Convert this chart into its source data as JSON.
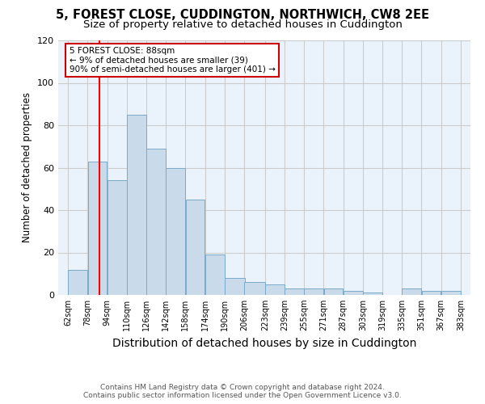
{
  "title": "5, FOREST CLOSE, CUDDINGTON, NORTHWICH, CW8 2EE",
  "subtitle": "Size of property relative to detached houses in Cuddington",
  "xlabel": "Distribution of detached houses by size in Cuddington",
  "ylabel": "Number of detached properties",
  "bar_left_edges": [
    62,
    78,
    94,
    110,
    126,
    142,
    158,
    174,
    190,
    206,
    223,
    239,
    255,
    271,
    287,
    303,
    319,
    335,
    351,
    367
  ],
  "bar_widths": [
    16,
    16,
    16,
    16,
    16,
    16,
    16,
    16,
    17,
    17,
    16,
    16,
    16,
    16,
    16,
    16,
    16,
    16,
    16,
    16
  ],
  "bar_heights": [
    12,
    63,
    54,
    85,
    69,
    60,
    45,
    19,
    8,
    6,
    5,
    3,
    3,
    3,
    2,
    1,
    0,
    3,
    2,
    2
  ],
  "bar_color": "#c9daea",
  "bar_edge_color": "#7aaac8",
  "red_line_x": 88,
  "annotation_text": "5 FOREST CLOSE: 88sqm\n← 9% of detached houses are smaller (39)\n90% of semi-detached houses are larger (401) →",
  "annotation_box_color": "#ffffff",
  "annotation_box_edge": "#cc0000",
  "tick_labels": [
    "62sqm",
    "78sqm",
    "94sqm",
    "110sqm",
    "126sqm",
    "142sqm",
    "158sqm",
    "174sqm",
    "190sqm",
    "206sqm",
    "223sqm",
    "239sqm",
    "255sqm",
    "271sqm",
    "287sqm",
    "303sqm",
    "319sqm",
    "335sqm",
    "351sqm",
    "367sqm",
    "383sqm"
  ],
  "tick_positions": [
    62,
    78,
    94,
    110,
    126,
    142,
    158,
    174,
    190,
    206,
    223,
    239,
    255,
    271,
    287,
    303,
    319,
    335,
    351,
    367,
    383
  ],
  "xlim": [
    54,
    391
  ],
  "ylim": [
    0,
    120
  ],
  "yticks": [
    0,
    20,
    40,
    60,
    80,
    100,
    120
  ],
  "grid_color": "#cccccc",
  "background_color": "#eaf3fb",
  "footer_line1": "Contains HM Land Registry data © Crown copyright and database right 2024.",
  "footer_line2": "Contains public sector information licensed under the Open Government Licence v3.0.",
  "title_fontsize": 10.5,
  "subtitle_fontsize": 9.5,
  "xlabel_fontsize": 10,
  "ylabel_fontsize": 8.5,
  "tick_fontsize": 7,
  "footer_fontsize": 6.5,
  "annot_fontsize": 7.5
}
